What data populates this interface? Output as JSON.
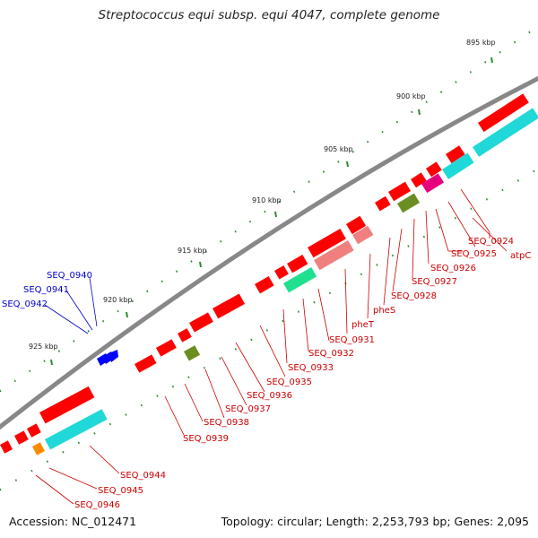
{
  "title": "Streptococcus equi subsp. equi 4047, complete genome",
  "footer": {
    "accession": "Accession: NC_012471",
    "summary": "Topology: circular; Length: 2,253,793 bp; Genes: 2,095"
  },
  "ruler_ticks": [
    "895 kbp",
    "900 kbp",
    "905 kbp",
    "910 kbp",
    "915 kbp",
    "920 kbp",
    "925 kbp"
  ],
  "gene_labels_forward": [
    "SEQ_0940",
    "SEQ_0941",
    "SEQ_0942"
  ],
  "gene_labels_reverse": [
    "atpC",
    "SEQ_0924",
    "SEQ_0925",
    "SEQ_0926",
    "SEQ_0927",
    "SEQ_0928",
    "pheS",
    "pheT",
    "SEQ_0931",
    "SEQ_0932",
    "SEQ_0933",
    "SEQ_0935",
    "SEQ_0936",
    "SEQ_0937",
    "SEQ_0938",
    "SEQ_0939",
    "SEQ_0944",
    "SEQ_0945",
    "SEQ_0946"
  ],
  "colors": {
    "backbone": "#808080",
    "forward_label": "#0000cc",
    "reverse_label": "#cc0000",
    "cds_forward": "#0000ff",
    "cds_reverse": "#ff0000",
    "rna": "#00d0d0",
    "green_feature": "#00e080",
    "olive_feature": "#6b8e23",
    "magenta_feature": "#e6007e",
    "orange_feature": "#ff8c00",
    "pink_feature": "#f08080",
    "tick": "#228b22"
  }
}
